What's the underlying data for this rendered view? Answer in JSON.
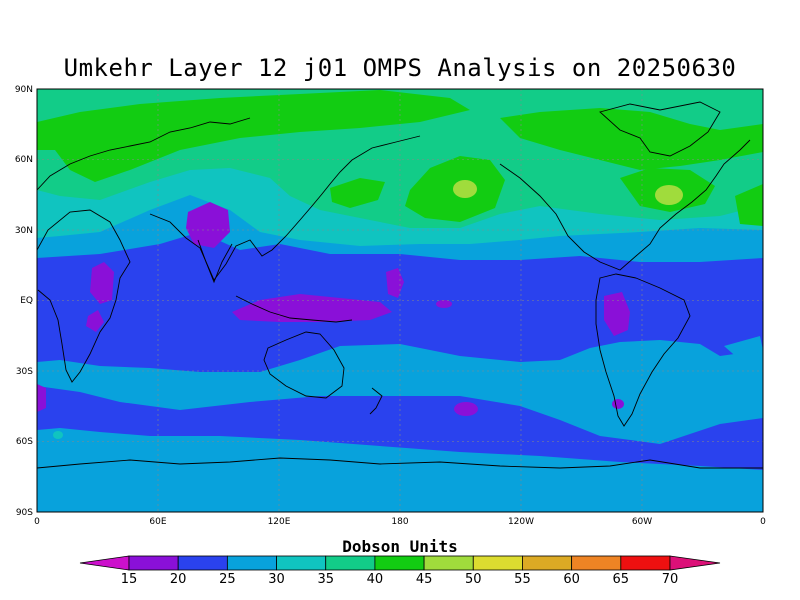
{
  "title": "Umkehr Layer 12 j01 OMPS Analysis on 20250630",
  "colorbar": {
    "label": "Dobson Units",
    "ticks": [
      "15",
      "20",
      "25",
      "30",
      "35",
      "40",
      "45",
      "50",
      "55",
      "60",
      "65",
      "70"
    ],
    "colors": [
      "#cc10cc",
      "#8a10d8",
      "#2a42ee",
      "#08a2dc",
      "#10c4c0",
      "#12cc88",
      "#12cc12",
      "#a0dc3c",
      "#dcdc30",
      "#dcaa24",
      "#ee8424",
      "#ee1010",
      "#dc1078"
    ]
  },
  "axes": {
    "x_ticks": [
      "0",
      "60E",
      "120E",
      "180",
      "120W",
      "60W",
      "0"
    ],
    "y_ticks": [
      "90N",
      "60N",
      "30N",
      "EQ",
      "30S",
      "60S",
      "90S"
    ]
  },
  "map": {
    "background_color": "#08a2dc",
    "regions": [
      {
        "name": "high-north-band",
        "level": "35-40",
        "color": "#12cc88"
      },
      {
        "name": "arctic-max",
        "level": "40-45",
        "color": "#12cc12"
      },
      {
        "name": "north-pacific-max",
        "level": "45-50",
        "color": "#a0dc3c"
      },
      {
        "name": "north-atlantic-max",
        "level": "45-50",
        "color": "#a0dc3c"
      },
      {
        "name": "tropical-band",
        "level": "20-25",
        "color": "#2a42ee"
      },
      {
        "name": "tropical-minima",
        "level": "15-20",
        "color": "#8a10d8"
      },
      {
        "name": "southern-ocean-band",
        "level": "20-25",
        "color": "#2a42ee"
      }
    ]
  }
}
